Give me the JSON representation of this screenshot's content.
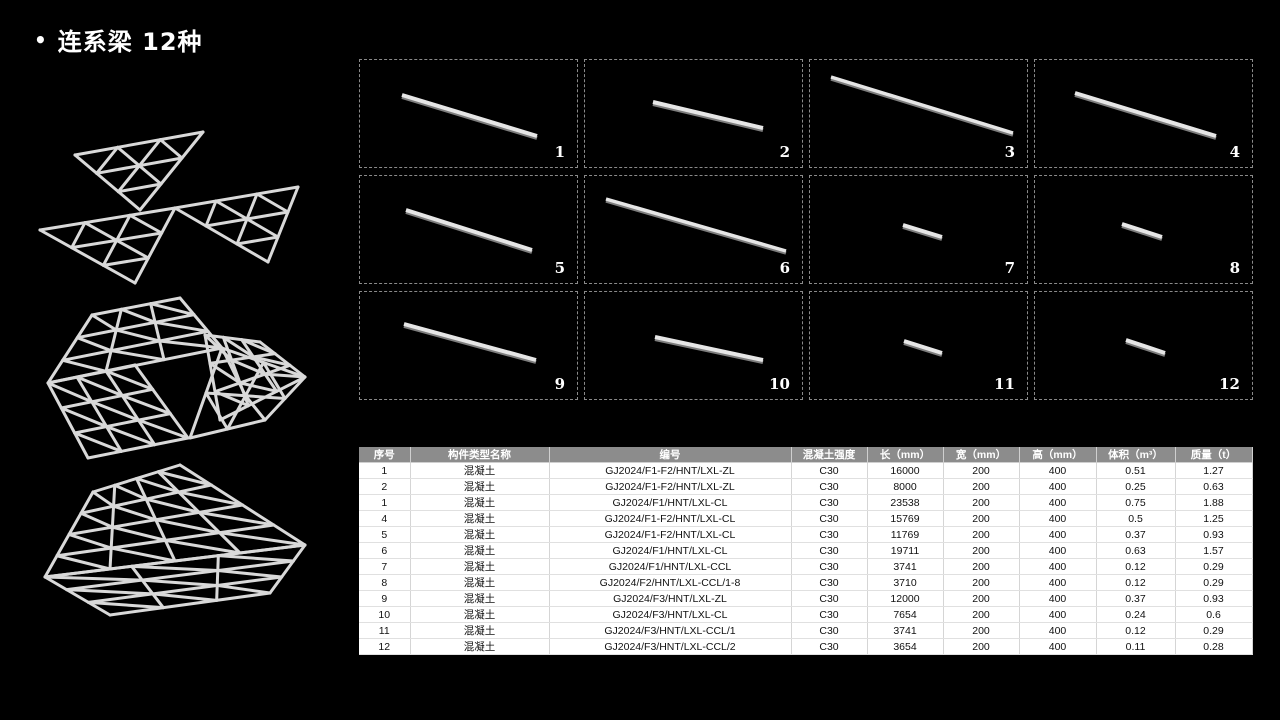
{
  "page": {
    "bullet": "•",
    "title": "连系梁 12种"
  },
  "thumbnails": [
    {
      "label": "1"
    },
    {
      "label": "2"
    },
    {
      "label": "3"
    },
    {
      "label": "4"
    },
    {
      "label": "5"
    },
    {
      "label": "6"
    },
    {
      "label": "7"
    },
    {
      "label": "8"
    },
    {
      "label": "9"
    },
    {
      "label": "10"
    },
    {
      "label": "11"
    },
    {
      "label": "12"
    }
  ],
  "table": {
    "headers": [
      "序号",
      "构件类型名称",
      "编号",
      "混凝土强度",
      "长（mm）",
      "宽（mm）",
      "高（mm）",
      "体积（m³）",
      "质量（t）"
    ],
    "rows": [
      [
        "1",
        "混凝土",
        "GJ2024/F1-F2/HNT/LXL-ZL",
        "C30",
        "16000",
        "200",
        "400",
        "0.51",
        "1.27"
      ],
      [
        "2",
        "混凝土",
        "GJ2024/F1-F2/HNT/LXL-ZL",
        "C30",
        "8000",
        "200",
        "400",
        "0.25",
        "0.63"
      ],
      [
        "1",
        "混凝土",
        "GJ2024/F1/HNT/LXL-CL",
        "C30",
        "23538",
        "200",
        "400",
        "0.75",
        "1.88"
      ],
      [
        "4",
        "混凝土",
        "GJ2024/F1-F2/HNT/LXL-CL",
        "C30",
        "15769",
        "200",
        "400",
        "0.5",
        "1.25"
      ],
      [
        "5",
        "混凝土",
        "GJ2024/F1-F2/HNT/LXL-CL",
        "C30",
        "11769",
        "200",
        "400",
        "0.37",
        "0.93"
      ],
      [
        "6",
        "混凝土",
        "GJ2024/F1/HNT/LXL-CL",
        "C30",
        "19711",
        "200",
        "400",
        "0.63",
        "1.57"
      ],
      [
        "7",
        "混凝土",
        "GJ2024/F1/HNT/LXL-CCL",
        "C30",
        "3741",
        "200",
        "400",
        "0.12",
        "0.29"
      ],
      [
        "8",
        "混凝土",
        "GJ2024/F2/HNT/LXL-CCL/1-8",
        "C30",
        "3710",
        "200",
        "400",
        "0.12",
        "0.29"
      ],
      [
        "9",
        "混凝土",
        "GJ2024/F3/HNT/LXL-ZL",
        "C30",
        "12000",
        "200",
        "400",
        "0.37",
        "0.93"
      ],
      [
        "10",
        "混凝土",
        "GJ2024/F3/HNT/LXL-CL",
        "C30",
        "7654",
        "200",
        "400",
        "0.24",
        "0.6"
      ],
      [
        "11",
        "混凝土",
        "GJ2024/F3/HNT/LXL-CCL/1",
        "C30",
        "3741",
        "200",
        "400",
        "0.12",
        "0.29"
      ],
      [
        "12",
        "混凝土",
        "GJ2024/F3/HNT/LXL-CCL/2",
        "C30",
        "3654",
        "200",
        "400",
        "0.11",
        "0.28"
      ]
    ]
  }
}
